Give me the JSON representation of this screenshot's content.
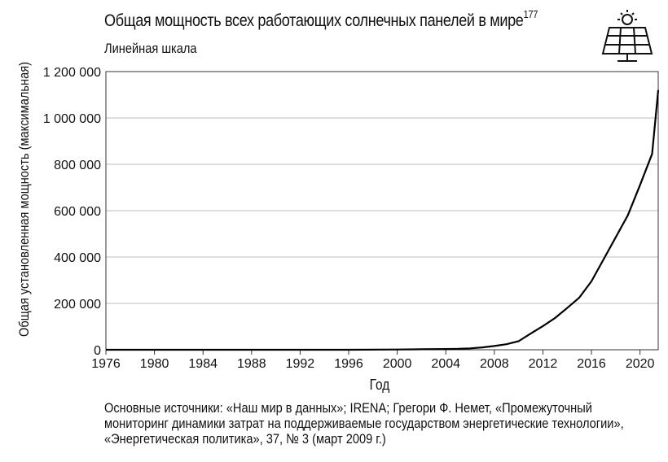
{
  "title": "Общая мощность всех работающих солнечных панелей в мире",
  "title_note": "177",
  "subtitle": "Линейная шкала",
  "source_text": "Основные источники: «Наш мир в данных»; IRENA; Грегори Ф. Немет, «Промежуточный мониторинг динамики затрат на поддерживаемые государством энергетические технологии», «Энергетическая политика», 37, № 3 (март 2009 г.)",
  "icon": "solar-panel-icon",
  "colors": {
    "line": "#000000",
    "grid": "#bdbdbd",
    "axis": "#333333"
  },
  "chart_data": {
    "type": "line",
    "title": "Общая мощность всех работающих солнечных панелей в мире",
    "subtitle": "Линейная шкала",
    "xlabel": "Год",
    "ylabel": "Общая установленная мощность (максимальная)",
    "xlim": [
      1976,
      2021.5
    ],
    "ylim": [
      0,
      1200000
    ],
    "xticks": [
      1976,
      1980,
      1984,
      1988,
      1992,
      1996,
      2000,
      2004,
      2008,
      2012,
      2016,
      2020
    ],
    "yticks": [
      0,
      200000,
      400000,
      600000,
      800000,
      1000000,
      1200000
    ],
    "ytick_labels": [
      "0",
      "200 000",
      "400 000",
      "600 000",
      "800 000",
      "1 000 000",
      "1 200 000"
    ],
    "grid": "horizontal",
    "series": [
      {
        "x": [
          1976,
          1980,
          1984,
          1988,
          1992,
          1996,
          2000,
          2002,
          2004,
          2005,
          2006,
          2007,
          2008,
          2009,
          2010,
          2011,
          2012,
          2013,
          2014,
          2015,
          2016,
          2017,
          2018,
          2019,
          2020,
          2021,
          2021.5
        ],
        "values": [
          0,
          0,
          0,
          0,
          0,
          0,
          1000,
          2000,
          3000,
          4000,
          6000,
          10000,
          16000,
          24000,
          37000,
          70000,
          102000,
          137000,
          180000,
          225000,
          295000,
          390000,
          485000,
          580000,
          710000,
          845000,
          1120000
        ]
      }
    ]
  }
}
